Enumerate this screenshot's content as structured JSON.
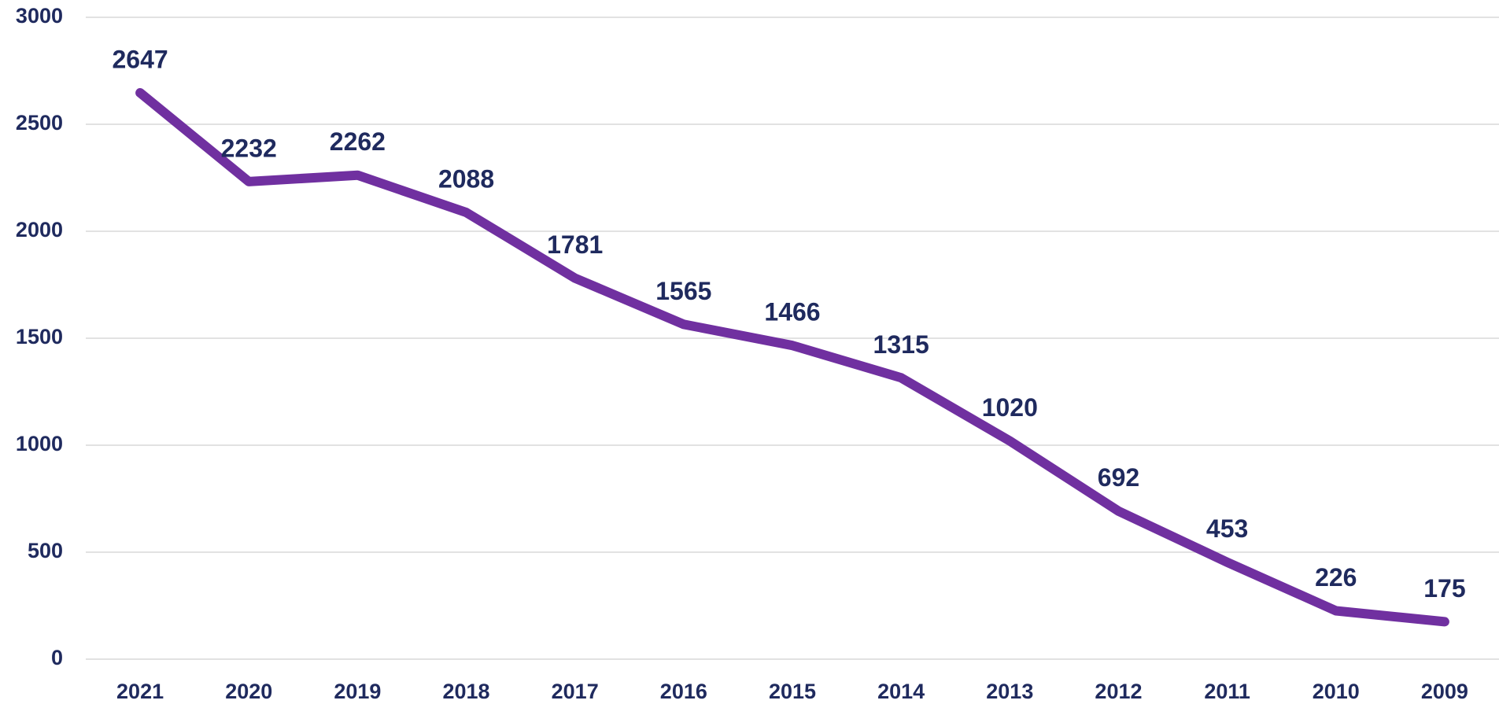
{
  "chart_data": {
    "type": "line",
    "categories": [
      "2021",
      "2020",
      "2019",
      "2018",
      "2017",
      "2016",
      "2015",
      "2014",
      "2013",
      "2012",
      "2011",
      "2010",
      "2009"
    ],
    "values": [
      2647,
      2232,
      2262,
      2088,
      1781,
      1565,
      1466,
      1315,
      1020,
      692,
      453,
      226,
      175
    ],
    "color": "#7030a0",
    "ylim": [
      0,
      3000
    ],
    "yticks": [
      0,
      500,
      1000,
      1500,
      2000,
      2500,
      3000
    ],
    "grid": true
  }
}
